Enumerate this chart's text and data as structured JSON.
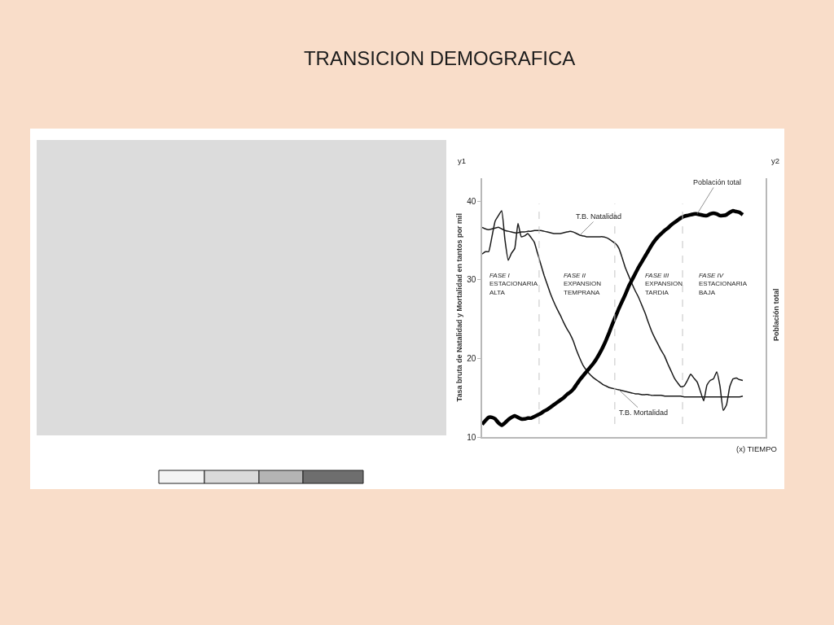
{
  "chart_data": {
    "type": "line",
    "title": "TRANSICION DEMOGRAFICA",
    "xlabel": "(x) TIEMPO",
    "ylabel": "Tasa bruta de Natalidad y Mortalidad en tantos por mil",
    "y2label": "Población total",
    "categories": [
      null,
      null,
      null,
      null,
      null,
      null,
      null,
      null,
      null,
      null,
      null,
      null,
      null,
      null,
      null,
      null,
      null,
      null,
      null,
      null,
      null,
      null,
      null,
      null,
      null,
      null,
      null,
      null,
      null,
      null,
      null,
      null,
      null,
      null,
      null,
      null,
      null,
      null,
      null,
      null,
      null,
      null,
      null,
      null,
      null,
      null,
      null,
      null,
      null,
      null,
      null,
      null,
      null,
      null,
      null,
      null,
      null,
      null,
      null,
      null,
      null,
      null,
      null,
      null,
      null,
      null,
      null,
      null,
      null,
      null,
      null,
      null,
      null,
      null,
      null,
      null,
      null,
      null,
      null,
      null,
      null
    ],
    "series": [
      {
        "name": "T.B. Natalidad",
        "color": "#1a1a1a",
        "values": [
          36.7,
          36.5,
          36.4,
          36.5,
          36.6,
          36.7,
          36.5,
          36.3,
          36.2,
          36.1,
          36.0,
          36.0,
          36.1,
          36.1,
          36.2,
          36.2,
          36.3,
          36.3,
          36.3,
          36.2,
          36.1,
          36.0,
          35.9,
          35.9,
          35.9,
          36.0,
          36.1,
          36.2,
          36.1,
          35.9,
          35.7,
          35.6,
          35.5,
          35.5,
          35.5,
          35.5,
          35.5,
          35.5,
          35.4,
          35.2,
          34.9,
          34.6,
          34.0,
          32.8,
          31.5,
          30.5,
          29.5,
          28.6,
          27.8,
          26.8,
          25.8,
          24.6,
          23.5,
          22.6,
          21.8,
          21.0,
          20.3,
          19.3,
          18.4,
          17.5,
          16.9,
          16.4,
          16.5,
          17.2,
          18.0,
          17.5,
          17.0,
          15.8,
          14.6,
          16.6,
          17.2,
          17.4,
          18.3,
          16.5,
          13.4,
          14.1,
          16.4,
          17.4,
          17.5,
          17.3,
          17.2
        ]
      },
      {
        "name": "T.B. Mortalidad",
        "color": "#1a1a1a",
        "values": [
          33.3,
          33.6,
          33.6,
          35.5,
          37.5,
          38.2,
          38.8,
          35.1,
          32.5,
          33.4,
          34.0,
          37.2,
          35.5,
          35.6,
          35.9,
          35.4,
          34.8,
          33.4,
          32.0,
          30.6,
          29.4,
          28.2,
          27.2,
          26.3,
          25.5,
          24.6,
          23.8,
          23.1,
          22.2,
          21.0,
          20.0,
          19.1,
          18.5,
          18.0,
          17.6,
          17.3,
          17.0,
          16.7,
          16.5,
          16.3,
          16.2,
          16.1,
          16.0,
          15.9,
          15.8,
          15.7,
          15.6,
          15.5,
          15.5,
          15.4,
          15.4,
          15.4,
          15.3,
          15.3,
          15.3,
          15.3,
          15.2,
          15.2,
          15.2,
          15.2,
          15.2,
          15.2,
          15.1,
          15.1,
          15.1,
          15.1,
          15.1,
          15.1,
          15.1,
          15.1,
          15.1,
          15.1,
          15.1,
          15.1,
          15.1,
          15.1,
          15.1,
          15.1,
          15.1,
          15.1,
          15.2
        ]
      },
      {
        "name": "Población total",
        "color": "#000000",
        "values": [
          11.6,
          12.1,
          12.5,
          12.5,
          12.3,
          11.8,
          11.5,
          11.8,
          12.2,
          12.5,
          12.7,
          12.5,
          12.3,
          12.3,
          12.4,
          12.4,
          12.6,
          12.8,
          13.0,
          13.3,
          13.5,
          13.8,
          14.1,
          14.4,
          14.7,
          15.0,
          15.4,
          15.7,
          16.1,
          16.7,
          17.3,
          17.8,
          18.3,
          18.8,
          19.3,
          19.9,
          20.6,
          21.4,
          22.3,
          23.3,
          24.4,
          25.4,
          26.4,
          27.3,
          28.2,
          29.2,
          30.0,
          30.8,
          31.6,
          32.3,
          33.0,
          33.7,
          34.4,
          35.0,
          35.5,
          35.9,
          36.3,
          36.6,
          37.0,
          37.3,
          37.6,
          37.9,
          38.1,
          38.2,
          38.3,
          38.4,
          38.4,
          38.3,
          38.2,
          38.2,
          38.4,
          38.5,
          38.4,
          38.2,
          38.2,
          38.3,
          38.6,
          38.8,
          38.7,
          38.6,
          38.3
        ]
      }
    ],
    "ylim": [
      10,
      43
    ],
    "yticks": [
      10,
      20,
      30,
      40
    ],
    "annotations": [
      "y1",
      "y2",
      "FASE I\nESTACIONARIA\nALTA",
      "FASE II\nEXPANSION\nTEMPRANA",
      "FASE III\nEXPANSION\nTARDIA",
      "FASE IV\nESTACIONARIA\nBAJA"
    ],
    "legend": false,
    "line_style": "solid"
  }
}
